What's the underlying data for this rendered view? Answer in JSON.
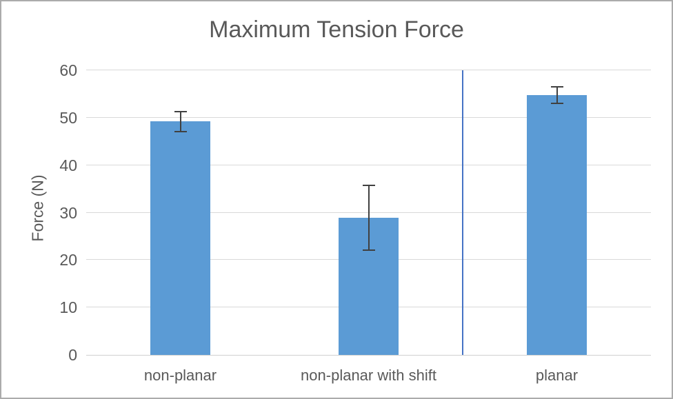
{
  "chart_data": {
    "type": "bar",
    "title": "Maximum Tension Force",
    "xlabel": "",
    "ylabel": "Force (N)",
    "categories": [
      "non-planar",
      "non-planar with shift",
      "planar"
    ],
    "values": [
      49.2,
      28.9,
      54.8
    ],
    "error_bars": [
      2.2,
      7.0,
      1.9
    ],
    "yticks": [
      0,
      10,
      20,
      30,
      40,
      50,
      60
    ],
    "ylim": [
      0,
      60
    ],
    "grid": true,
    "legend": "none",
    "separator": {
      "after_category_index": 1
    },
    "colors": {
      "bar": "#5B9BD5",
      "separator_line": "#4472C4",
      "gridline": "#D9D9D9",
      "axis_line": "#D0D0D0",
      "text": "#595959",
      "error_bar": "#404040",
      "outer_border": "#ABABAB"
    }
  }
}
